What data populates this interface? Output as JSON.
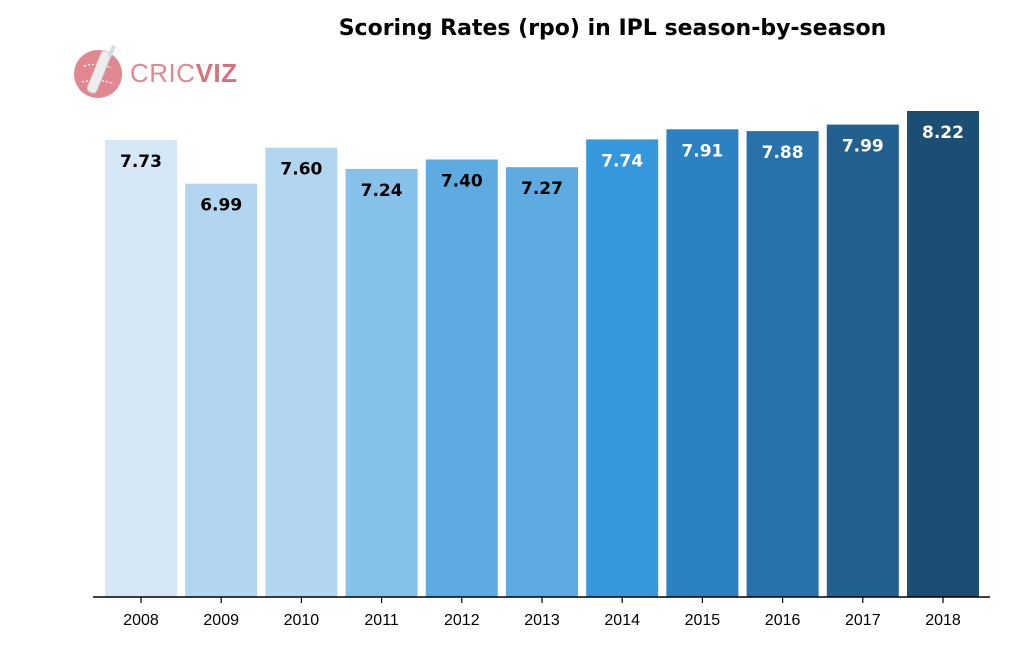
{
  "header": {
    "title": "Scoring Rates (rpo) in IPL season-by-season"
  },
  "logo": {
    "text_light": "CRIC",
    "text_bold": "VIZ",
    "icon": "cricket-ball-bat-icon",
    "color": "#e0878f"
  },
  "chart_data": {
    "type": "bar",
    "title": "Scoring Rates (rpo) in IPL season-by-season",
    "xlabel": "",
    "ylabel": "",
    "categories": [
      "2008",
      "2009",
      "2010",
      "2011",
      "2012",
      "2013",
      "2014",
      "2015",
      "2016",
      "2017",
      "2018"
    ],
    "values": [
      7.73,
      6.99,
      7.6,
      7.24,
      7.4,
      7.27,
      7.74,
      7.91,
      7.88,
      7.99,
      8.22
    ],
    "labels": [
      "7.73",
      "6.99",
      "7.60",
      "7.24",
      "7.40",
      "7.27",
      "7.74",
      "7.91",
      "7.88",
      "7.99",
      "8.22"
    ],
    "colors": [
      "#d6e8f7",
      "#b2d5f0",
      "#b2d5f0",
      "#86c1e9",
      "#5eabe2",
      "#5eabe2",
      "#3698dc",
      "#2b81c1",
      "#2772aa",
      "#22618f",
      "#1b4e72"
    ],
    "label_colors": [
      "#000000",
      "#000000",
      "#000000",
      "#000000",
      "#000000",
      "#000000",
      "#ffffff",
      "#ffffff",
      "#ffffff",
      "#ffffff",
      "#ffffff"
    ],
    "ylim": [
      0,
      8.22
    ],
    "grid": false,
    "legend": "none"
  }
}
